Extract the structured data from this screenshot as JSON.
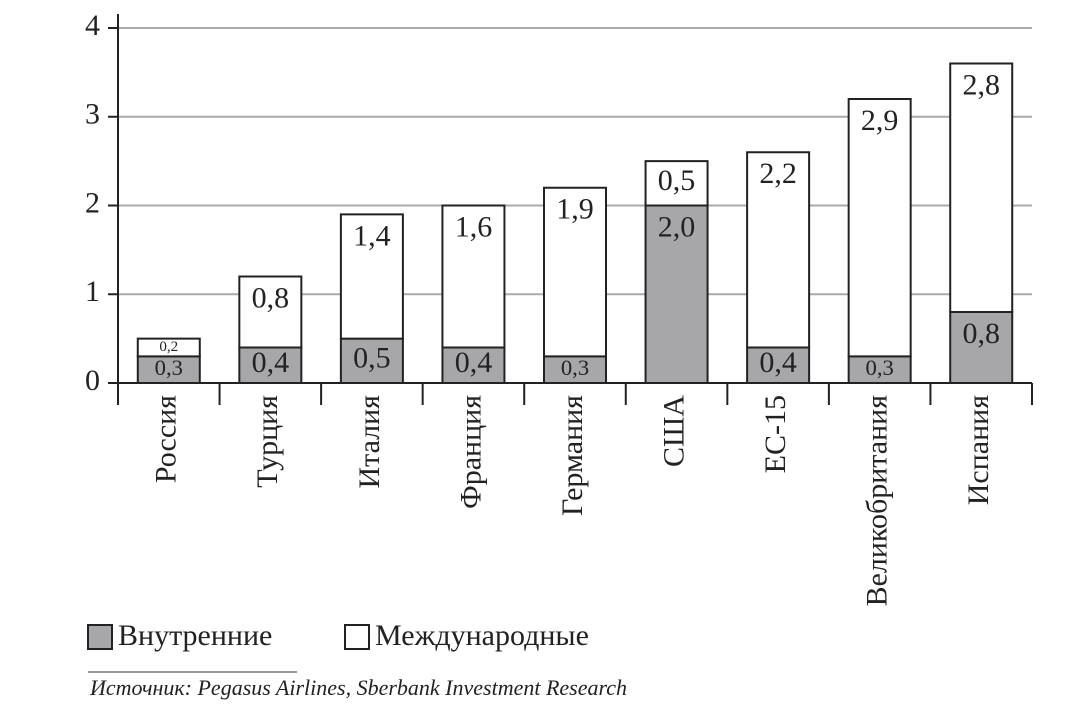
{
  "chart_data": {
    "type": "bar",
    "stacked": true,
    "categories": [
      "Россия",
      "Турция",
      "Италия",
      "Франция",
      "Германия",
      "США",
      "ЕС-15",
      "Великобритания",
      "Испания"
    ],
    "series": [
      {
        "name": "Внутренние",
        "color": "#a7a7a9",
        "values": [
          0.3,
          0.4,
          0.5,
          0.4,
          0.3,
          2.0,
          0.4,
          0.3,
          0.8
        ],
        "value_labels": [
          "0,3",
          "0,4",
          "0,5",
          "0,4",
          "0,3",
          "2,0",
          "0,4",
          "0,3",
          "0,8"
        ]
      },
      {
        "name": "Международные",
        "color": "#ffffff",
        "values": [
          0.2,
          0.8,
          1.4,
          1.6,
          1.9,
          0.5,
          2.2,
          2.9,
          2.8
        ],
        "value_labels": [
          "0,2",
          "0,8",
          "1,4",
          "1,6",
          "1,9",
          "0,5",
          "2,2",
          "2,9",
          "2,8"
        ]
      }
    ],
    "ylim": [
      0,
      4
    ],
    "yticks": [
      0,
      1,
      2,
      3,
      4
    ],
    "grid": true,
    "source": "Источник: Pegasus Airlines, Sberbank Investment Research"
  }
}
